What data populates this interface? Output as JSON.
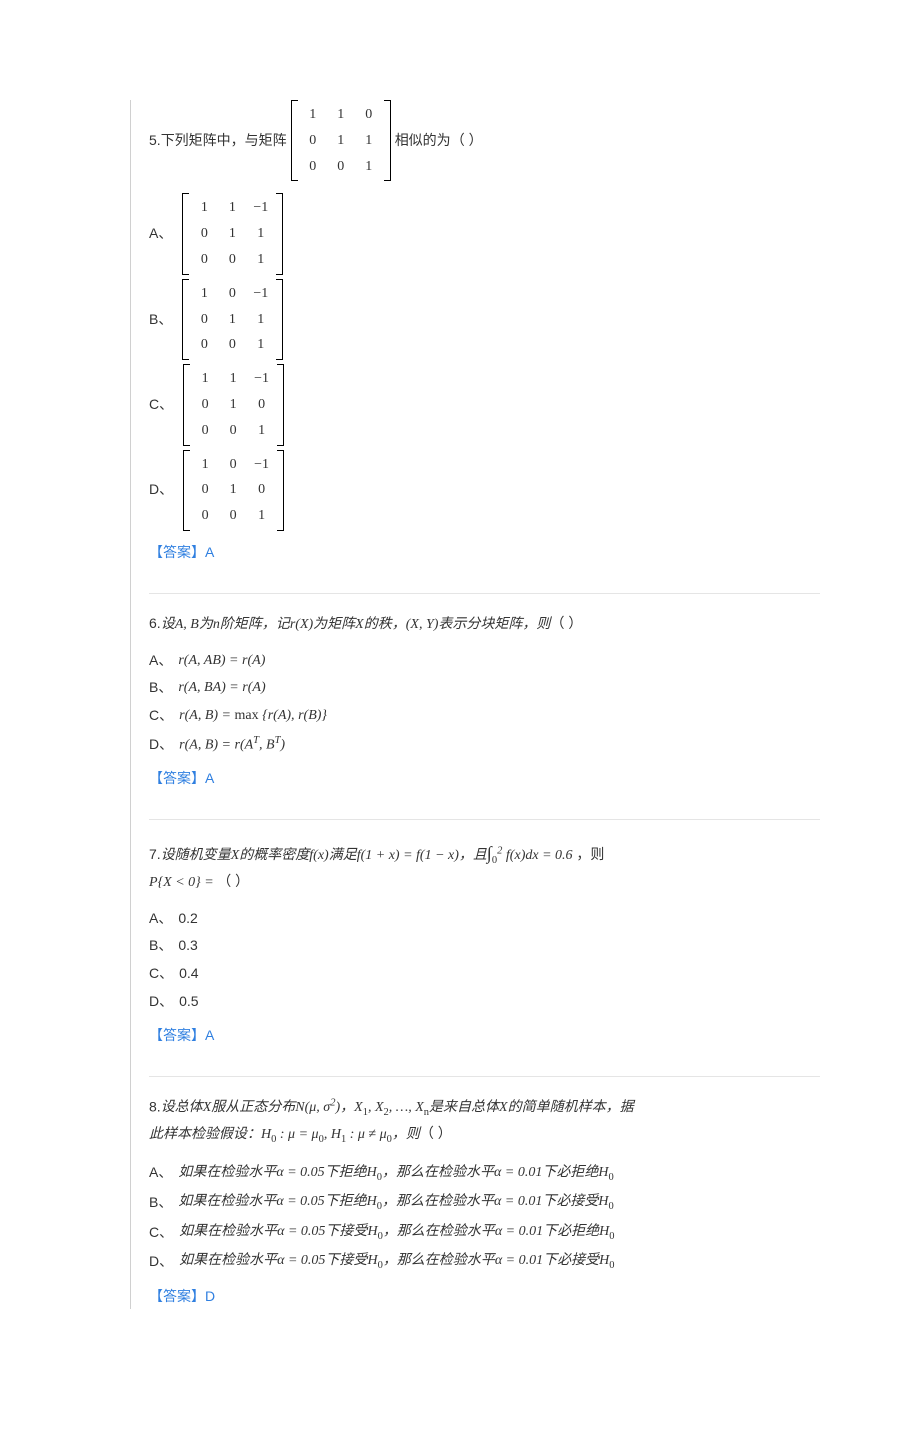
{
  "colors": {
    "text": "#333333",
    "answer": "#2f7fe0",
    "divider": "#e5e5e5",
    "border_left": "#d0d0d0",
    "background": "#ffffff"
  },
  "typography": {
    "body_font": "Microsoft YaHei / SimSun",
    "math_font": "Cambria Math / Times New Roman",
    "body_fontsize_pt": 10.5,
    "answer_fontsize_pt": 10.5
  },
  "answer_label": "【答案】",
  "option_separator": "、",
  "paren": "（  ）",
  "questions": [
    {
      "number": "5",
      "stem_parts": [
        "下列矩阵中，与矩阵",
        "相似的为"
      ],
      "stem_matrix": [
        [
          1,
          1,
          0
        ],
        [
          0,
          1,
          1
        ],
        [
          0,
          0,
          1
        ]
      ],
      "options": [
        {
          "label": "A",
          "matrix": [
            [
              1,
              1,
              -1
            ],
            [
              0,
              1,
              1
            ],
            [
              0,
              0,
              1
            ]
          ]
        },
        {
          "label": "B",
          "matrix": [
            [
              1,
              0,
              -1
            ],
            [
              0,
              1,
              1
            ],
            [
              0,
              0,
              1
            ]
          ]
        },
        {
          "label": "C",
          "matrix": [
            [
              1,
              1,
              -1
            ],
            [
              0,
              1,
              0
            ],
            [
              0,
              0,
              1
            ]
          ]
        },
        {
          "label": "D",
          "matrix": [
            [
              1,
              0,
              -1
            ],
            [
              0,
              1,
              0
            ],
            [
              0,
              0,
              1
            ]
          ]
        }
      ],
      "answer": "A"
    },
    {
      "number": "6",
      "stem_math": "设A, B为n阶矩阵，记r(X)为矩阵X的秩，(X, Y)表示分块矩阵，则",
      "options_text": [
        {
          "label": "A",
          "math": "r(A, AB) = r(A)"
        },
        {
          "label": "B",
          "math": "r(A, BA) = r(A)"
        },
        {
          "label": "C",
          "math": "r(A, B) = max {r(A), r(B)}"
        },
        {
          "label": "D",
          "math": "r(A, B) = r(Aᵀ, Bᵀ)"
        }
      ],
      "answer": "A"
    },
    {
      "number": "7",
      "stem_parts": [
        "设随机变量X的概率密度f(x)满足f(1 + x) = f(1 − x)，且",
        "∫0→2 f(x)dx = 0.6",
        "，则"
      ],
      "stem_line2": "P{X < 0} = ",
      "options_text": [
        {
          "label": "A",
          "text": "0.2"
        },
        {
          "label": "B",
          "text": "0.3"
        },
        {
          "label": "C",
          "text": "0.4"
        },
        {
          "label": "D",
          "text": "0.5"
        }
      ],
      "answer": "A"
    },
    {
      "number": "8",
      "stem_line1": "设总体X服从正态分布N(μ, σ²)，X₁, X₂, …, Xₙ是来自总体X的简单随机样本，据",
      "stem_line2": "此样本检验假设：H₀ : μ = μ₀, H₁ : μ ≠ μ₀，则",
      "options_text": [
        {
          "label": "A",
          "text": "如果在检验水平α = 0.05下拒绝H₀，那么在检验水平α = 0.01下必拒绝H₀"
        },
        {
          "label": "B",
          "text": "如果在检验水平α = 0.05下拒绝H₀，那么在检验水平α = 0.01下必接受H₀"
        },
        {
          "label": "C",
          "text": "如果在检验水平α = 0.05下接受H₀，那么在检验水平α = 0.01下必拒绝H₀"
        },
        {
          "label": "D",
          "text": "如果在检验水平α = 0.05下接受H₀，那么在检验水平α = 0.01下必接受H₀"
        }
      ],
      "answer": "D"
    }
  ]
}
